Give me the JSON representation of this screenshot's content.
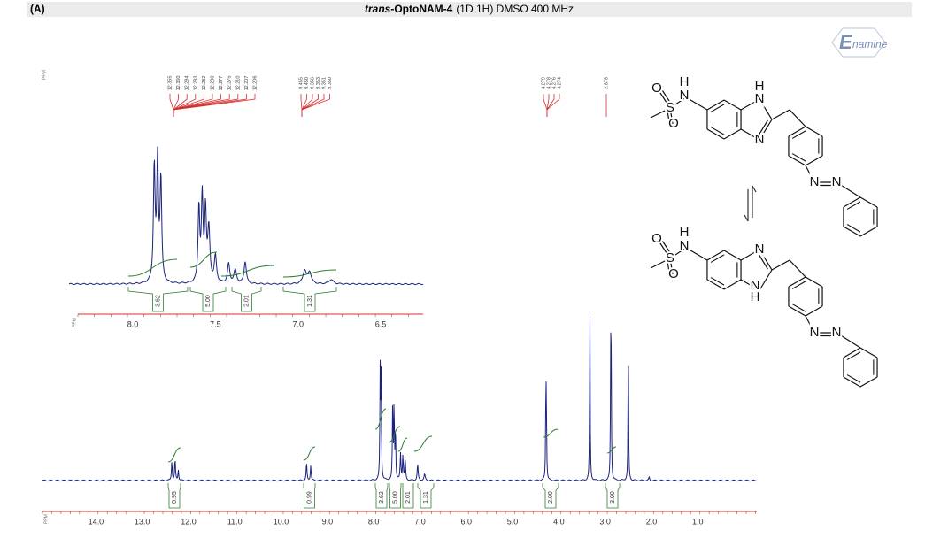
{
  "panel_label": "(A)",
  "title": {
    "prefix": "trans",
    "name": "-OptoNAM-4",
    "rest": "(1D 1H) DMSO 400 MHz"
  },
  "logo": {
    "initial": "E",
    "rest": "namine"
  },
  "peak_list": {
    "ppm_label": "PPM",
    "groups": [
      [
        "12.355",
        "12.350",
        "12.294",
        "12.283",
        "12.282",
        "12.280",
        "12.277",
        "12.275",
        "12.210",
        "12.207",
        "12.206"
      ],
      [
        "9.455",
        "9.450",
        "9.356",
        "9.353",
        "9.351",
        "9.350"
      ],
      [
        "4.279",
        "4.278",
        "4.276",
        "4.274"
      ],
      [
        "2.878"
      ]
    ]
  },
  "inset": {
    "ppm_label": "PPM",
    "axis_labels": [
      "8.0",
      "7.5",
      "7.0",
      "6.5"
    ],
    "integrals": [
      "3.62",
      "5.00",
      "2.01",
      "1.31"
    ]
  },
  "spectrum": {
    "ppm_label": "PPM",
    "axis_labels": [
      "14.0",
      "13.0",
      "12.0",
      "11.0",
      "10.0",
      "9.0",
      "8.0",
      "7.0",
      "6.0",
      "5.0",
      "4.0",
      "3.0",
      "2.0",
      "1.0"
    ],
    "integrals": [
      "0.95",
      "0.99",
      "3.62",
      "5.00",
      "2.01",
      "1.31",
      "2.00",
      "3.00"
    ]
  },
  "structures": [
    {
      "atoms": [
        "O",
        "H",
        "N",
        "S",
        "O",
        "H",
        "N",
        "N",
        "N",
        "N"
      ]
    },
    {
      "atoms": [
        "O",
        "H",
        "N",
        "S",
        "O",
        "N",
        "H",
        "N",
        "N",
        "N"
      ]
    }
  ]
}
